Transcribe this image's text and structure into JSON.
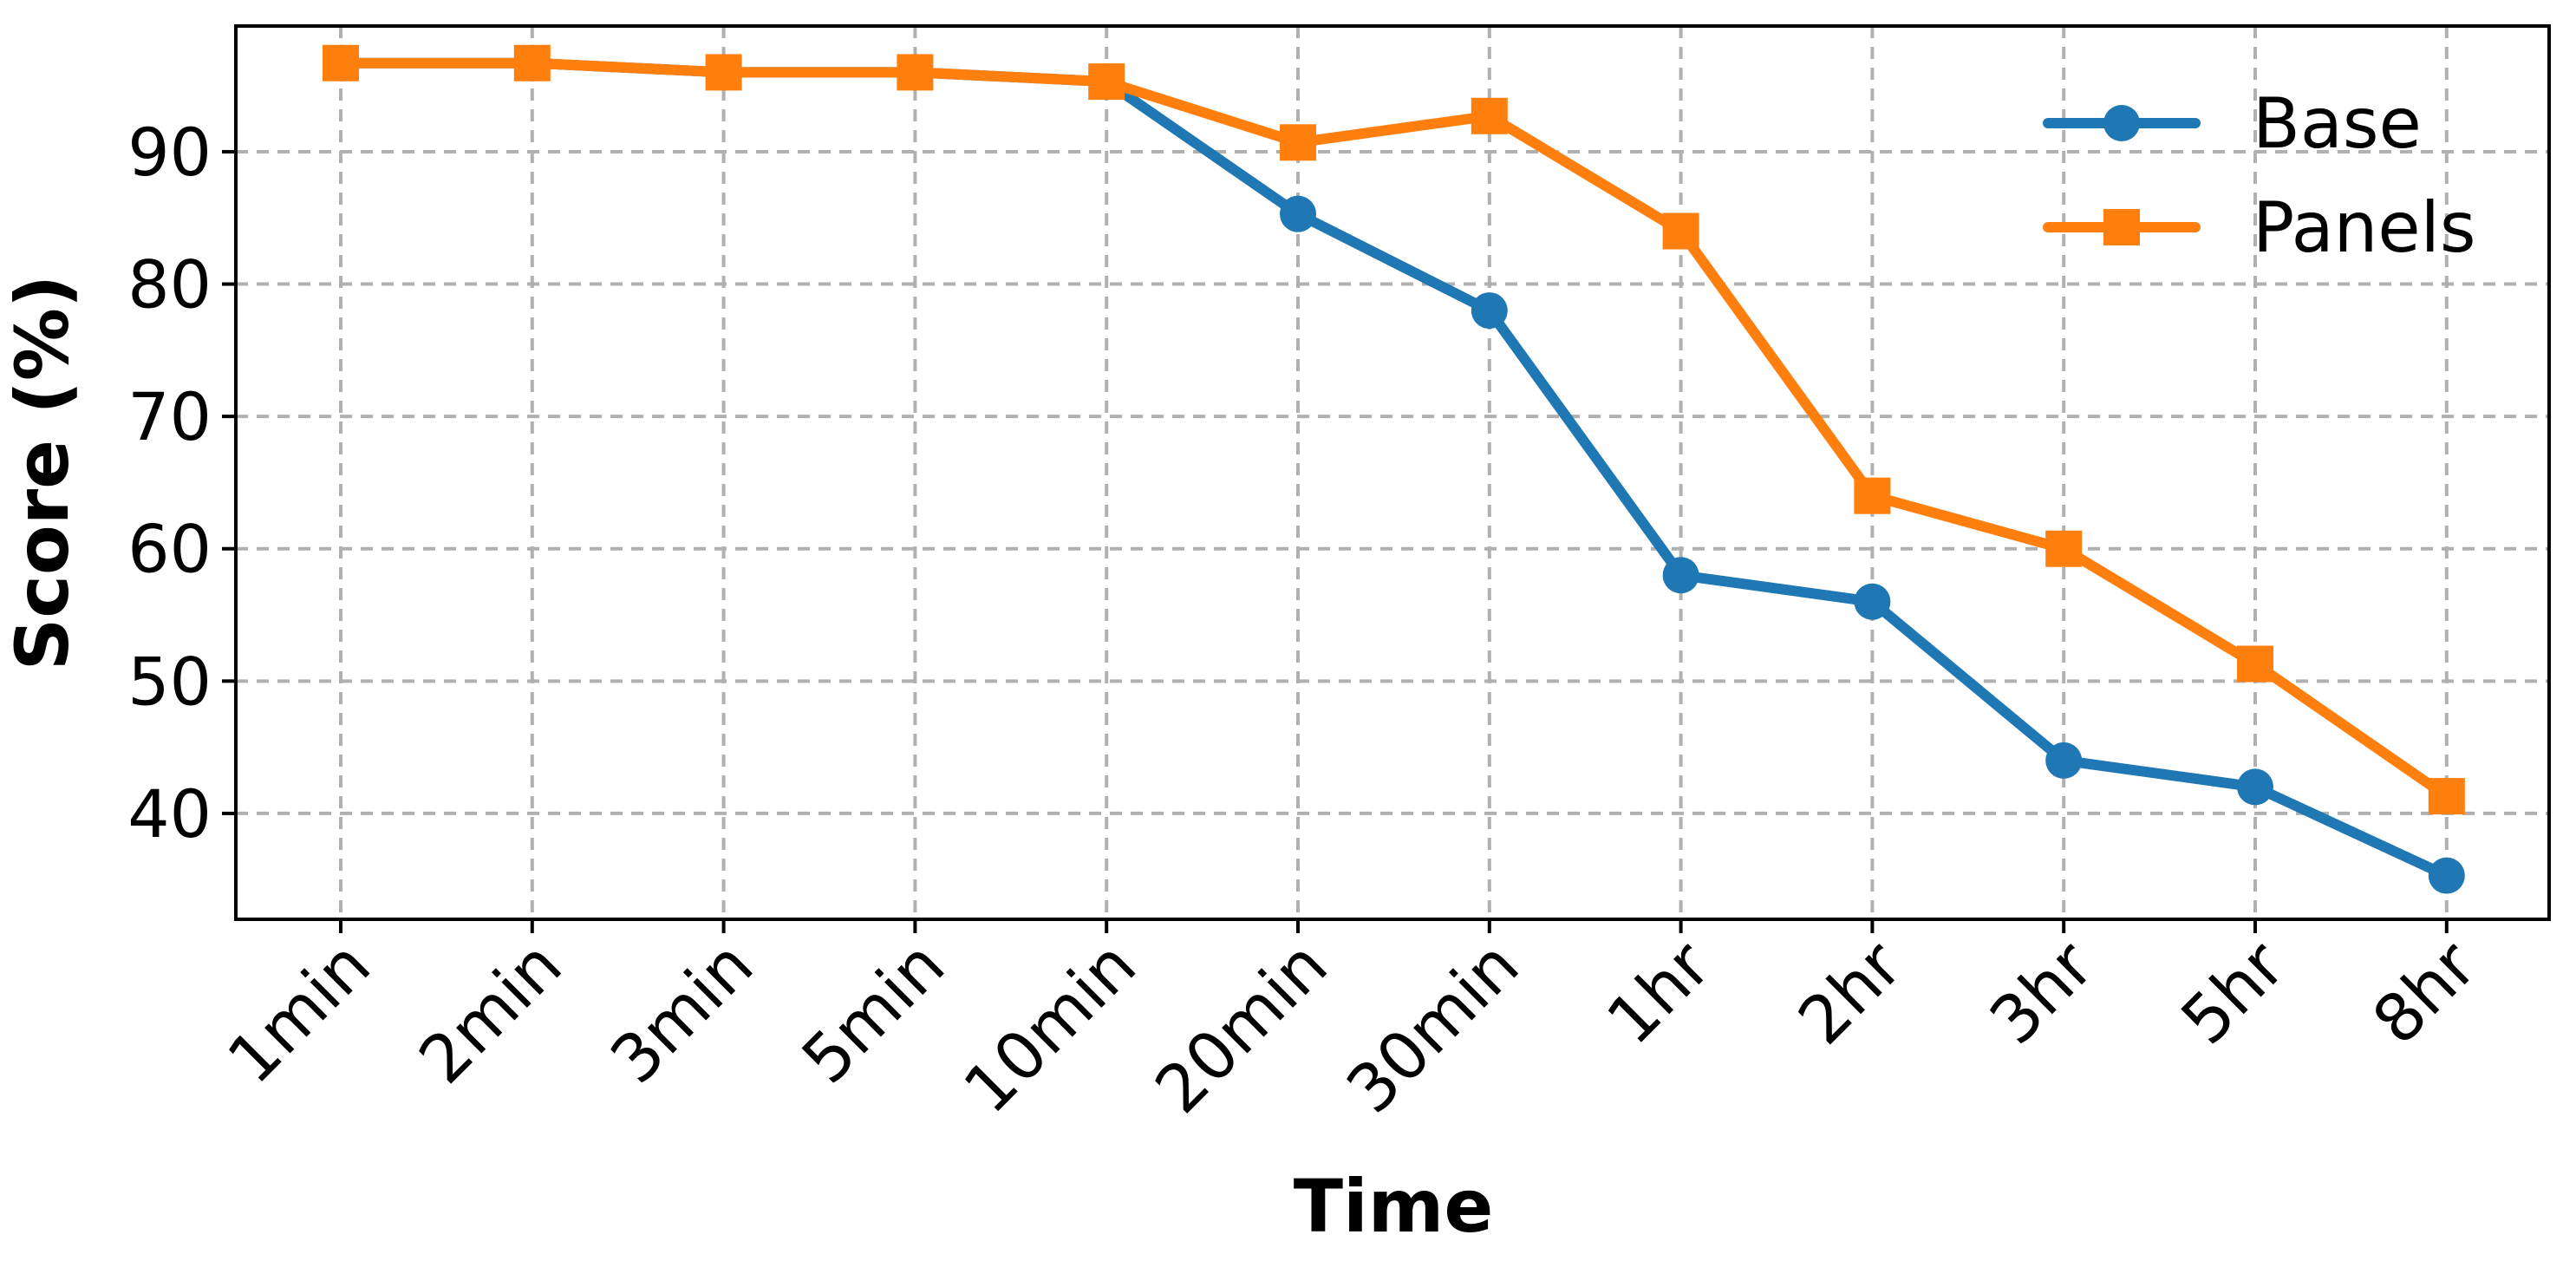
{
  "chart_data": {
    "type": "line",
    "title": "",
    "xlabel": "Time",
    "ylabel": "Score (%)",
    "categories": [
      "1min",
      "2min",
      "3min",
      "5min",
      "10min",
      "20min",
      "30min",
      "1hr",
      "2hr",
      "3hr",
      "5hr",
      "8hr"
    ],
    "ylim": [
      32,
      99.5
    ],
    "yticks": [
      40,
      50,
      60,
      70,
      80,
      90
    ],
    "grid": true,
    "legend_position": "top-right",
    "series": [
      {
        "name": "Base",
        "color": "#1f77b4",
        "marker": "circle",
        "values": [
          96.7,
          96.7,
          96.0,
          96.0,
          95.3,
          85.3,
          78.0,
          58.0,
          56.0,
          44.0,
          42.0,
          35.3
        ]
      },
      {
        "name": "Panels",
        "color": "#ff7f0e",
        "marker": "square",
        "values": [
          96.7,
          96.7,
          96.0,
          96.0,
          95.3,
          90.7,
          92.7,
          84.0,
          64.0,
          60.0,
          51.3,
          41.3
        ]
      }
    ]
  }
}
